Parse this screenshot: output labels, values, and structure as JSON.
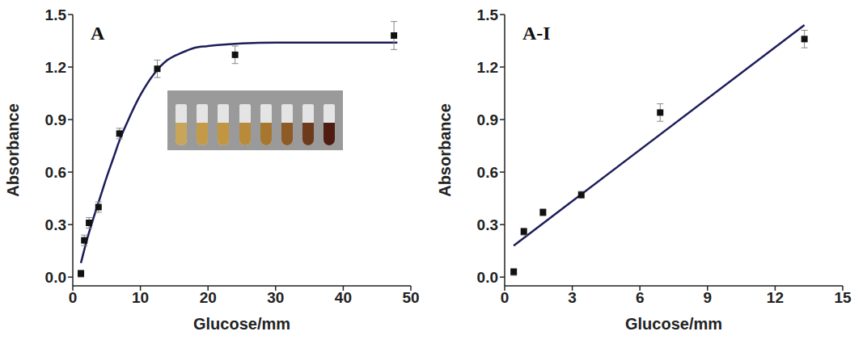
{
  "chart_data": [
    {
      "type": "scatter",
      "title": "A",
      "x_label": "Glucose/mm",
      "y_label": "Absorbance",
      "xlim": [
        0,
        50
      ],
      "xticks": [
        0,
        10,
        20,
        30,
        40,
        50
      ],
      "ylim": [
        -0.05,
        1.5
      ],
      "yticks": [
        {
          "value": 0,
          "label": "0.0"
        },
        0.3,
        0.6,
        0.9,
        1.2,
        1.5
      ],
      "grid": false,
      "series": [
        {
          "type": "scatter",
          "marker": "square",
          "color": "#111111",
          "x": [
            1.2,
            1.7,
            2.4,
            3.8,
            6.9,
            12.5,
            24,
            47.5
          ],
          "values": [
            0.02,
            0.21,
            0.31,
            0.4,
            0.82,
            1.19,
            1.27,
            1.38
          ],
          "errors": [
            0.02,
            0.03,
            0.03,
            0.03,
            0.03,
            0.05,
            0.05,
            0.08
          ]
        },
        {
          "type": "line",
          "line_style": "solid",
          "color": "#1c1c5a",
          "x": [
            1.2,
            2,
            3,
            4,
            5,
            6,
            7,
            8,
            10,
            12,
            14,
            16,
            18,
            20,
            25,
            30,
            40,
            48
          ],
          "values": [
            0.08,
            0.2,
            0.33,
            0.45,
            0.57,
            0.68,
            0.79,
            0.88,
            1.04,
            1.16,
            1.24,
            1.28,
            1.31,
            1.32,
            1.335,
            1.34,
            1.34,
            1.34
          ]
        }
      ]
    },
    {
      "type": "scatter",
      "title": "A-I",
      "x_label": "Glucose/mm",
      "y_label": "Absorbance",
      "xlim": [
        0,
        15
      ],
      "xticks": [
        0,
        3,
        6,
        9,
        12,
        15
      ],
      "ylim": [
        -0.05,
        1.5
      ],
      "yticks": [
        {
          "value": 0,
          "label": "0.0"
        },
        0.3,
        0.6,
        0.9,
        1.2,
        1.5
      ],
      "grid": false,
      "series": [
        {
          "type": "scatter",
          "marker": "square",
          "color": "#111111",
          "x": [
            0.4,
            0.85,
            1.7,
            3.4,
            6.9,
            13.3
          ],
          "values": [
            0.03,
            0.26,
            0.37,
            0.47,
            0.94,
            1.36
          ],
          "errors": [
            0.02,
            0.02,
            0.02,
            0.02,
            0.05,
            0.05
          ]
        },
        {
          "type": "line",
          "line_style": "solid",
          "color": "#1c1c5a",
          "x": [
            0.4,
            13.3
          ],
          "values": [
            0.18,
            1.44
          ]
        }
      ]
    }
  ]
}
